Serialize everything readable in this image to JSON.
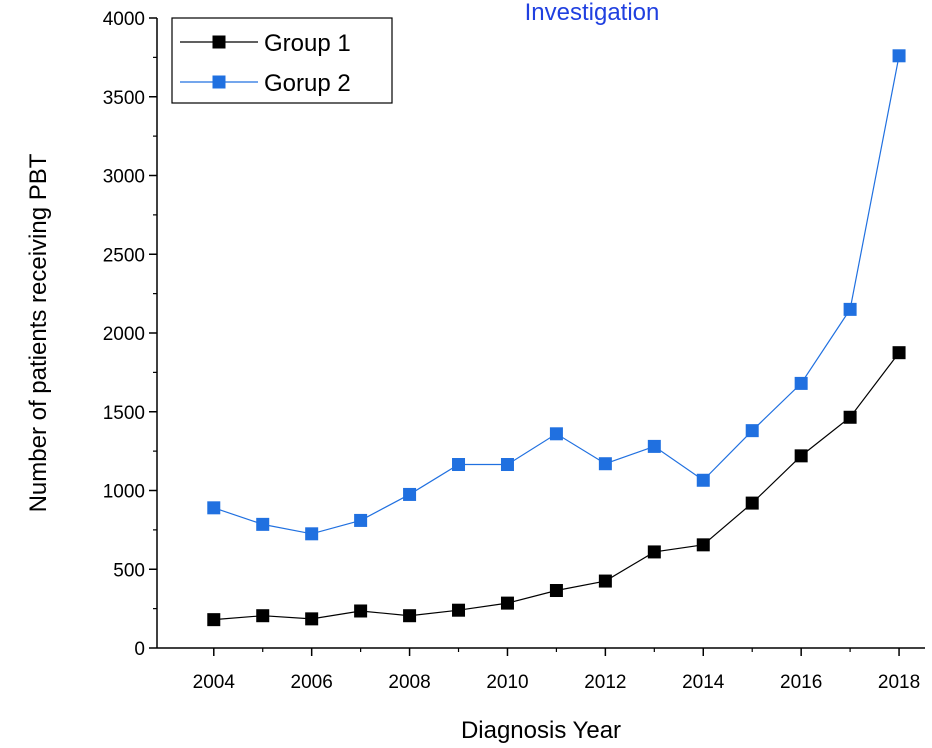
{
  "chart_data": {
    "type": "line",
    "title": "Investigation",
    "x_label": "Diagnosis Year",
    "y_label": "Number of patients receiving PBT",
    "x": [
      2004,
      2005,
      2006,
      2007,
      2008,
      2009,
      2010,
      2011,
      2012,
      2013,
      2014,
      2015,
      2016,
      2017,
      2018
    ],
    "series": [
      {
        "name": "Group 1",
        "color": "#000000",
        "values": [
          180,
          205,
          185,
          235,
          205,
          240,
          285,
          365,
          425,
          610,
          655,
          920,
          1220,
          1465,
          1875
        ]
      },
      {
        "name": "Gorup 2",
        "color": "#2070e0",
        "values": [
          890,
          785,
          725,
          810,
          975,
          1165,
          1165,
          1360,
          1170,
          1280,
          1065,
          1380,
          1680,
          2150,
          3760
        ]
      }
    ],
    "xlim": [
      2002.84,
      2018.53
    ],
    "xticks": [
      2004,
      2006,
      2008,
      2010,
      2012,
      2014,
      2016,
      2018
    ],
    "ylim": [
      0,
      4000
    ],
    "yticks": [
      0,
      500,
      1000,
      1500,
      2000,
      2500,
      3000,
      3500,
      4000
    ],
    "legend": "upper left"
  }
}
